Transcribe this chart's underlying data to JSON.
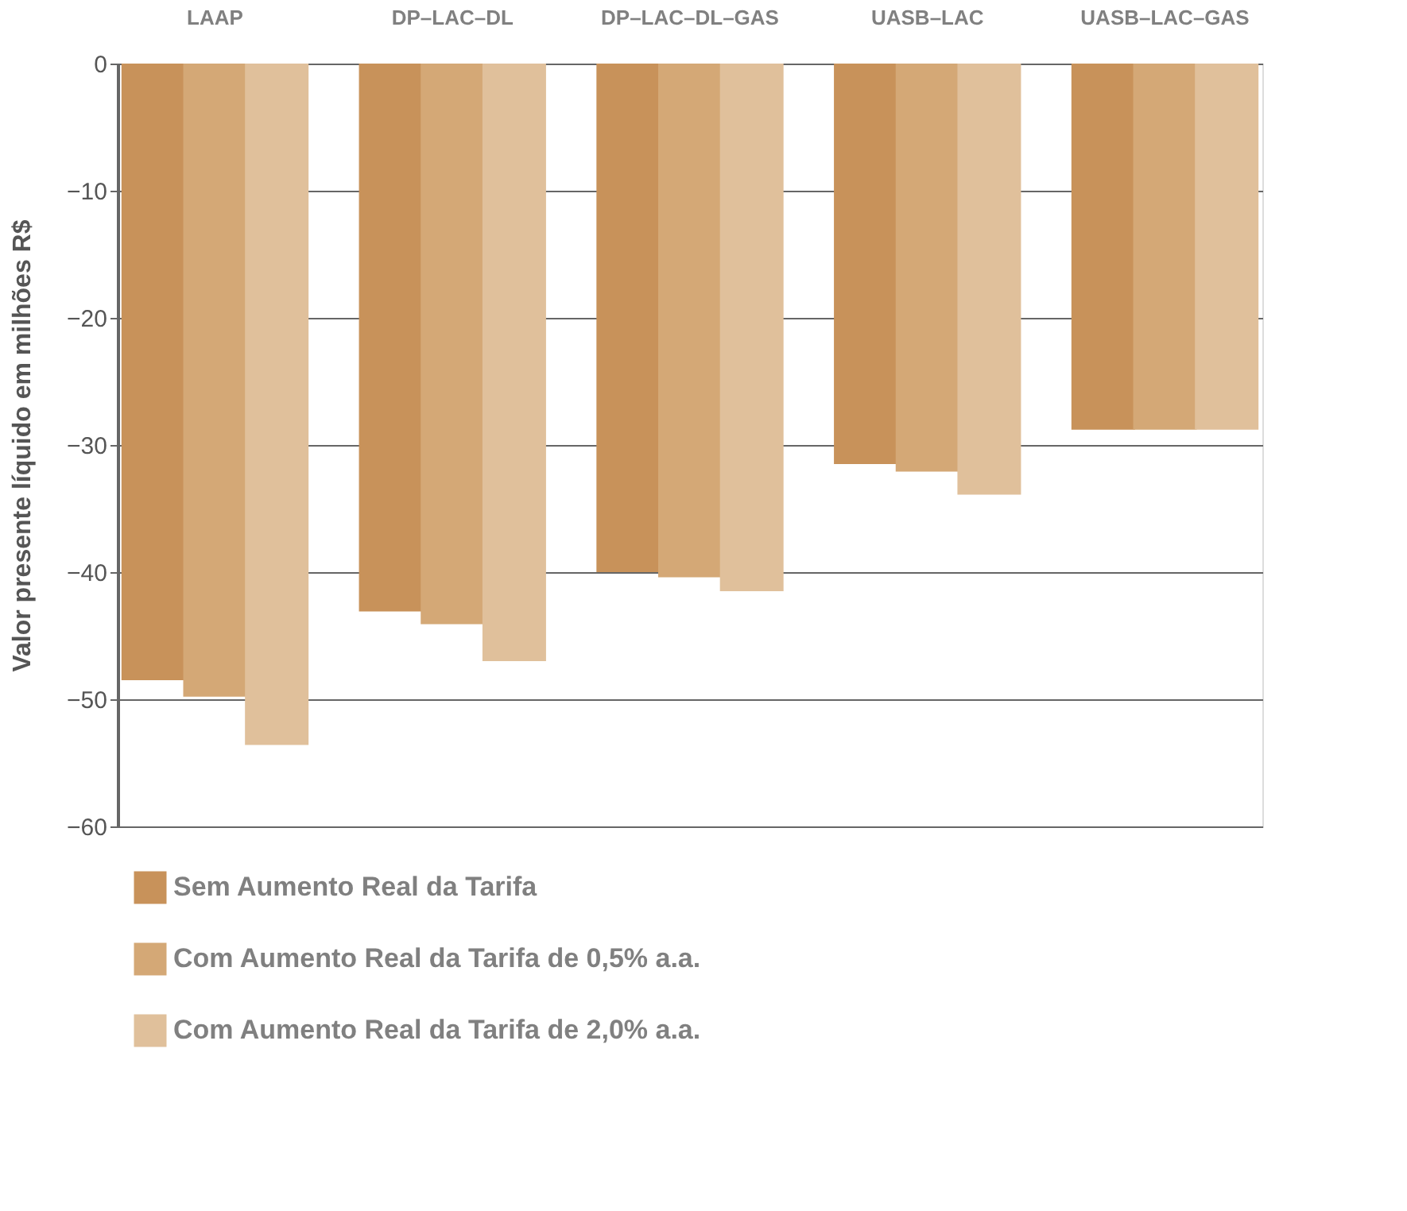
{
  "chart_data": {
    "type": "bar",
    "ylabel": "Valor presente líquido em milhões R$",
    "categories": [
      "LAAP",
      "DP–LAC–DL",
      "DP–LAC–DL–GAS",
      "UASB–LAC",
      "UASB–LAC–GAS"
    ],
    "series": [
      {
        "name": "Sem Aumento Real da Tarifa",
        "color": "#c8925a",
        "values": [
          -48.5,
          -43.1,
          -40.0,
          -31.5,
          -28.8
        ]
      },
      {
        "name": "Com Aumento Real da Tarifa de 0,5% a.a.",
        "color": "#d4a876",
        "values": [
          -49.8,
          -44.1,
          -40.4,
          -32.1,
          -28.8
        ]
      },
      {
        "name": "Com Aumento Real da Tarifa de 2,0% a.a.",
        "color": "#e0c09b",
        "values": [
          -53.6,
          -47.0,
          -41.5,
          -33.9,
          -28.8
        ]
      }
    ],
    "ylim": [
      -60,
      0
    ],
    "yticks": [
      0,
      -10,
      -20,
      -30,
      -40,
      -50,
      -60
    ],
    "grid": "y",
    "legend": "bottom left"
  }
}
